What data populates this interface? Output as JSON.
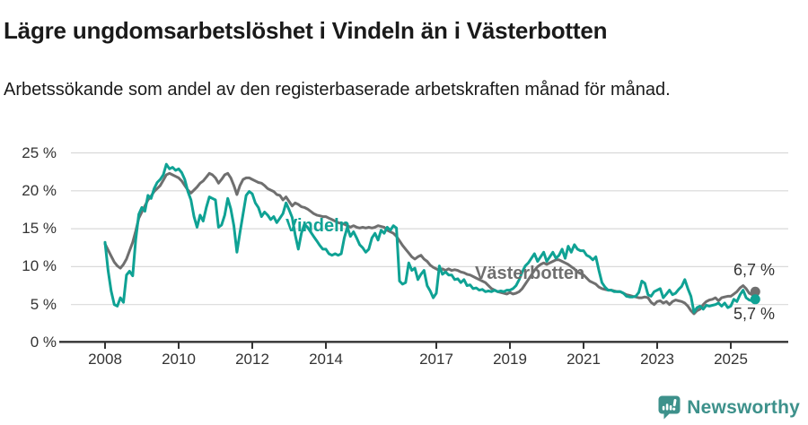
{
  "header": {
    "title": "Lägre ungdomsarbetslöshet i Vindeln än i Västerbotten",
    "subtitle": "Arbetssökande som andel av den registerbaserade arbetskraften månad för månad."
  },
  "chart_data": {
    "type": "line",
    "title": "Lägre ungdomsarbetslöshet i Vindeln än i Västerbotten",
    "x_start": "2008-01",
    "x_frequency": "monthly",
    "x_end": "2025-09",
    "y_unit": "%",
    "ylim": [
      0,
      25
    ],
    "grid": true,
    "grid_color": "#d9d9d9",
    "axis_color": "#333333",
    "y_ticks": [
      {
        "value": 0,
        "label": "0 %"
      },
      {
        "value": 5,
        "label": "5 %"
      },
      {
        "value": 10,
        "label": "10 %"
      },
      {
        "value": 15,
        "label": "15 %"
      },
      {
        "value": 20,
        "label": "20 %"
      },
      {
        "value": 25,
        "label": "25 %"
      }
    ],
    "x_ticks": [
      {
        "value": 2008,
        "label": "2008"
      },
      {
        "value": 2010,
        "label": "2010"
      },
      {
        "value": 2012,
        "label": "2012"
      },
      {
        "value": 2014,
        "label": "2014"
      },
      {
        "value": 2017,
        "label": "2017"
      },
      {
        "value": 2019,
        "label": "2019"
      },
      {
        "value": 2021,
        "label": "2021"
      },
      {
        "value": 2023,
        "label": "2023"
      },
      {
        "value": 2025,
        "label": "2025"
      }
    ],
    "series": [
      {
        "name": "Vindeln",
        "color": "#0fa294",
        "end_label": "5,7 %",
        "end_value": 5.7,
        "values": [
          13.2,
          9.5,
          6.8,
          5.0,
          4.8,
          5.9,
          5.3,
          8.9,
          9.4,
          8.8,
          13.6,
          16.9,
          17.8,
          17.3,
          19.4,
          19.0,
          20.3,
          21.1,
          21.5,
          22.1,
          23.5,
          22.9,
          23.1,
          22.7,
          22.9,
          22.4,
          21.5,
          19.9,
          18.8,
          16.6,
          15.2,
          16.8,
          16.0,
          17.8,
          19.2,
          19.0,
          18.8,
          15.2,
          15.5,
          16.8,
          19.0,
          17.6,
          15.4,
          11.9,
          14.5,
          17.0,
          19.4,
          19.9,
          19.6,
          18.4,
          17.8,
          16.6,
          17.2,
          16.8,
          16.2,
          16.6,
          15.8,
          16.4,
          17.0,
          18.4,
          17.5,
          16.5,
          14.2,
          12.3,
          14.4,
          15.6,
          15.2,
          14.6,
          14.0,
          13.4,
          12.8,
          12.3,
          12.3,
          11.7,
          11.5,
          11.7,
          11.5,
          11.7,
          13.8,
          15.2,
          14.0,
          14.6,
          13.8,
          12.9,
          12.5,
          11.9,
          12.3,
          13.8,
          14.4,
          13.5,
          14.8,
          14.4,
          15.2,
          14.8,
          15.4,
          15.1,
          8.1,
          7.7,
          7.9,
          10.5,
          9.5,
          9.8,
          8.3,
          9.0,
          9.5,
          7.5,
          6.8,
          5.9,
          6.5,
          10.1,
          9.0,
          9.3,
          8.9,
          8.9,
          8.3,
          8.4,
          7.9,
          8.3,
          7.5,
          7.6,
          7.1,
          7.2,
          6.9,
          7.0,
          6.7,
          6.8,
          6.7,
          6.9,
          6.7,
          6.8,
          6.7,
          6.9,
          6.9,
          7.1,
          7.5,
          8.3,
          9.3,
          10.1,
          10.5,
          11.1,
          11.7,
          10.7,
          11.3,
          11.9,
          10.7,
          11.3,
          11.9,
          11.1,
          11.5,
          12.3,
          11.1,
          12.7,
          11.9,
          12.9,
          12.3,
          12.1,
          12.1,
          11.5,
          11.3,
          10.9,
          11.3,
          9.5,
          7.9,
          7.3,
          6.9,
          6.9,
          6.7,
          6.7,
          6.7,
          6.5,
          6.1,
          6.0,
          6.0,
          6.1,
          6.6,
          8.1,
          7.8,
          6.3,
          6.1,
          6.7,
          6.9,
          7.1,
          5.9,
          6.4,
          6.9,
          6.3,
          6.5,
          7.0,
          7.4,
          8.3,
          7.1,
          6.1,
          4.0,
          4.6,
          4.8,
          4.4,
          4.9,
          4.8,
          4.9,
          5.0,
          5.2,
          4.8,
          5.2,
          4.6,
          4.8,
          5.7,
          5.4,
          6.3,
          6.9,
          5.9,
          5.6,
          5.5,
          5.7
        ]
      },
      {
        "name": "Västerbotten",
        "color": "#6f6f6f",
        "end_label": "6,7 %",
        "end_value": 6.7,
        "values": [
          13.0,
          12.2,
          11.4,
          10.6,
          10.1,
          9.8,
          10.3,
          11.0,
          12.1,
          13.2,
          14.7,
          16.4,
          17.2,
          18.0,
          18.8,
          19.3,
          19.9,
          20.3,
          20.7,
          21.4,
          22.1,
          22.3,
          22.1,
          21.9,
          21.7,
          21.3,
          20.7,
          20.1,
          19.7,
          20.1,
          20.5,
          21.0,
          21.3,
          21.8,
          22.3,
          22.1,
          21.7,
          21.0,
          21.5,
          22.1,
          22.3,
          21.7,
          20.7,
          19.5,
          20.7,
          21.5,
          21.7,
          21.7,
          21.5,
          21.3,
          21.1,
          21.0,
          20.7,
          20.3,
          20.1,
          19.9,
          19.5,
          19.4,
          18.8,
          19.2,
          18.6,
          18.0,
          18.4,
          18.2,
          17.9,
          17.8,
          17.6,
          17.3,
          17.0,
          16.8,
          16.7,
          16.6,
          16.6,
          16.4,
          16.2,
          16.0,
          15.8,
          15.7,
          15.6,
          15.4,
          15.2,
          15.4,
          15.2,
          15.1,
          15.2,
          15.1,
          15.2,
          15.1,
          15.2,
          15.4,
          15.3,
          15.2,
          14.8,
          14.6,
          14.4,
          14.0,
          13.4,
          12.8,
          12.3,
          11.8,
          11.3,
          11.0,
          11.3,
          11.5,
          11.0,
          10.7,
          10.2,
          9.9,
          9.7,
          9.5,
          9.7,
          9.5,
          9.7,
          9.5,
          9.6,
          9.5,
          9.3,
          9.2,
          9.0,
          8.9,
          8.7,
          8.5,
          8.3,
          8.1,
          7.9,
          7.5,
          7.1,
          6.9,
          6.7,
          6.6,
          6.5,
          6.4,
          6.6,
          6.4,
          6.5,
          6.7,
          7.1,
          7.7,
          8.3,
          8.9,
          9.5,
          10.0,
          10.3,
          10.5,
          10.3,
          10.5,
          10.7,
          10.9,
          10.9,
          10.7,
          10.5,
          10.3,
          10.0,
          9.7,
          9.3,
          9.1,
          8.9,
          8.5,
          8.1,
          7.9,
          7.7,
          7.3,
          7.1,
          7.0,
          6.9,
          6.9,
          6.8,
          6.7,
          6.7,
          6.5,
          6.3,
          6.2,
          6.1,
          6.0,
          5.9,
          5.9,
          6.0,
          5.9,
          5.3,
          5.0,
          5.4,
          5.5,
          5.2,
          5.4,
          5.0,
          5.4,
          5.6,
          5.5,
          5.4,
          5.2,
          4.8,
          4.2,
          3.8,
          4.2,
          4.4,
          5.0,
          5.4,
          5.6,
          5.7,
          5.9,
          5.5,
          5.9,
          6.0,
          6.1,
          6.1,
          6.4,
          6.7,
          7.2,
          7.5,
          7.1,
          6.5,
          6.3,
          6.7
        ]
      }
    ]
  },
  "footer": {
    "brand": "Newsworthy"
  }
}
